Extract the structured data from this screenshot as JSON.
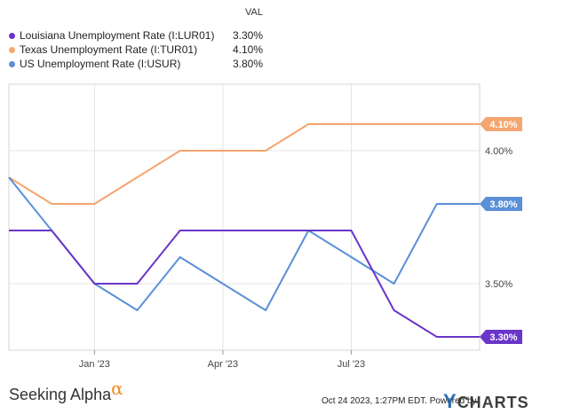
{
  "chart_data": {
    "type": "line",
    "val_header": "VAL",
    "x": [
      "2022-11",
      "2022-12",
      "2023-01",
      "2023-02",
      "2023-03",
      "2023-04",
      "2023-05",
      "2023-06",
      "2023-07",
      "2023-08",
      "2023-09",
      "2023-10"
    ],
    "x_ticks": [
      "Jan '23",
      "Apr '23",
      "Jul '23"
    ],
    "y_ticks": [
      "3.50%",
      "4.00%"
    ],
    "y_tick_values": [
      3.5,
      4.0
    ],
    "ylim": [
      3.25,
      4.25
    ],
    "series": [
      {
        "name": "Louisiana Unemployment Rate (I:LUR01)",
        "color": "#6a35c9",
        "last_label": "3.30%",
        "values": [
          3.7,
          3.7,
          3.5,
          3.5,
          3.7,
          3.7,
          3.7,
          3.7,
          3.7,
          3.4,
          3.3,
          3.3
        ]
      },
      {
        "name": "Texas Unemployment Rate (I:TUR01)",
        "color": "#f5a56f",
        "last_label": "4.10%",
        "values": [
          3.9,
          3.8,
          3.8,
          3.9,
          4.0,
          4.0,
          4.0,
          4.1,
          4.1,
          4.1,
          4.1,
          4.1
        ]
      },
      {
        "name": "US Unemployment Rate (I:USUR)",
        "color": "#5b8fd8",
        "last_label": "3.80%",
        "values": [
          3.9,
          3.7,
          3.5,
          3.4,
          3.6,
          3.5,
          3.4,
          3.7,
          3.6,
          3.5,
          3.8,
          3.8
        ]
      }
    ],
    "grid": true
  },
  "footer": {
    "brand_left": "Seeking Alpha",
    "brand_left_symbol": "α",
    "timestamp": "Oct 24 2023, 1:27PM EDT.",
    "powered_by": "Powered by",
    "brand_right_y": "Y",
    "brand_right_rest": "CHARTS"
  }
}
